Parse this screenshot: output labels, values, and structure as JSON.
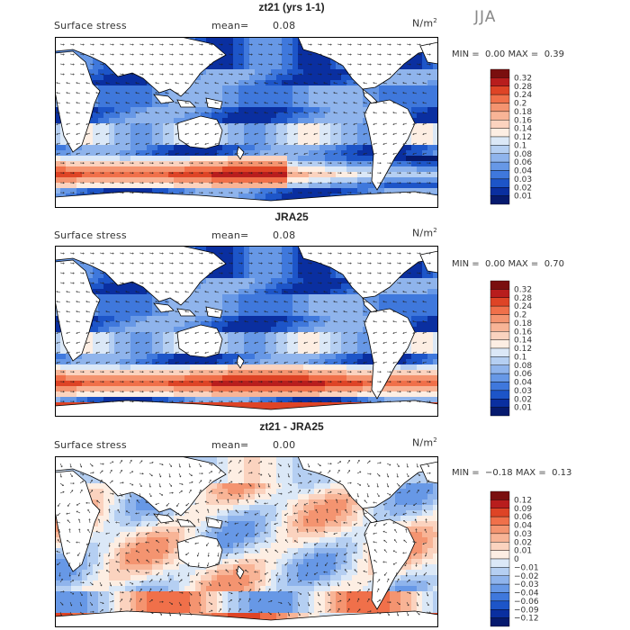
{
  "season": "JJA",
  "chart_data": [
    {
      "type": "heatmap",
      "title": "zt21 (yrs 1-1)",
      "variable": "Surface stress",
      "mean_label": "mean=",
      "mean": "0.08",
      "units": "N/m",
      "units_exp": "2",
      "min_label": "MIN =",
      "min": "0.00",
      "max_label": "MAX =",
      "max": "0.39",
      "colorbar_levels": [
        "0.32",
        "0.28",
        "0.24",
        "0.2",
        "0.18",
        "0.16",
        "0.14",
        "0.12",
        "0.1",
        "0.08",
        "0.06",
        "0.04",
        "0.03",
        "0.02",
        "0.01"
      ],
      "colorbar_colors": [
        "#7a0f0f",
        "#b81d1d",
        "#de4426",
        "#f0704a",
        "#f49470",
        "#f8b496",
        "#fbd3bf",
        "#fdeee3",
        "#dbe8f7",
        "#b5cff2",
        "#8fb4ec",
        "#6798e6",
        "#3f78dc",
        "#1d55c8",
        "#0a2fa0",
        "#061a6e"
      ],
      "pattern": "model"
    },
    {
      "type": "heatmap",
      "title": "JRA25",
      "variable": "Surface stress",
      "mean_label": "mean=",
      "mean": "0.08",
      "units": "N/m",
      "units_exp": "2",
      "min_label": "MIN =",
      "min": "0.00",
      "max_label": "MAX =",
      "max": "0.70",
      "colorbar_levels": [
        "0.32",
        "0.28",
        "0.24",
        "0.2",
        "0.18",
        "0.16",
        "0.14",
        "0.12",
        "0.1",
        "0.08",
        "0.06",
        "0.04",
        "0.03",
        "0.02",
        "0.01"
      ],
      "colorbar_colors": [
        "#7a0f0f",
        "#b81d1d",
        "#de4426",
        "#f0704a",
        "#f49470",
        "#f8b496",
        "#fbd3bf",
        "#fdeee3",
        "#dbe8f7",
        "#b5cff2",
        "#8fb4ec",
        "#6798e6",
        "#3f78dc",
        "#1d55c8",
        "#0a2fa0",
        "#061a6e"
      ],
      "pattern": "reanalysis"
    },
    {
      "type": "heatmap",
      "title": "zt21 - JRA25",
      "variable": "Surface stress",
      "mean_label": "mean=",
      "mean": "0.00",
      "units": "N/m",
      "units_exp": "2",
      "min_label": "MIN =",
      "min": "−0.18",
      "max_label": "MAX =",
      "max": "0.13",
      "colorbar_levels": [
        "0.12",
        "0.09",
        "0.06",
        "0.04",
        "0.03",
        "0.02",
        "0.01",
        "0",
        "−0.01",
        "−0.02",
        "−0.03",
        "−0.04",
        "−0.06",
        "−0.09",
        "−0.12"
      ],
      "colorbar_colors": [
        "#7a0f0f",
        "#b81d1d",
        "#de4426",
        "#f0704a",
        "#f49470",
        "#f8b496",
        "#fbd3bf",
        "#fdeee3",
        "#dbe8f7",
        "#b5cff2",
        "#8fb4ec",
        "#6798e6",
        "#3f78dc",
        "#1d55c8",
        "#0a2fa0",
        "#061a6e"
      ],
      "pattern": "difference"
    }
  ]
}
